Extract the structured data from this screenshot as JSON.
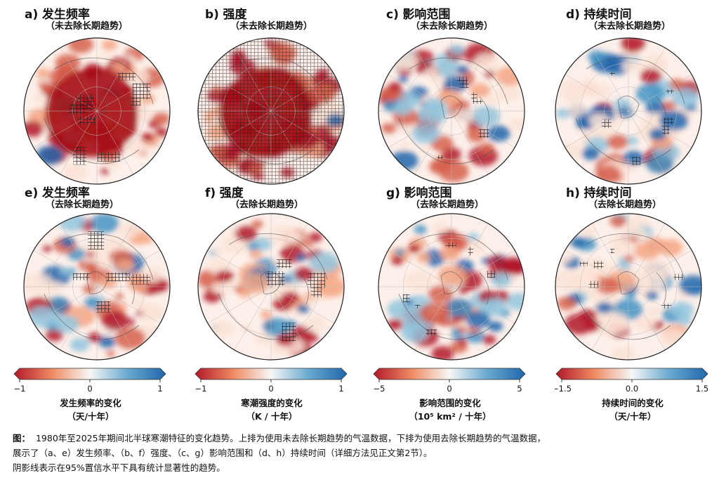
{
  "panels": [
    {
      "letter": "a)",
      "name": "发生频率",
      "subtitle": "（未去除长期趋势）",
      "red": 0.62,
      "blue": 0.1,
      "hatch": "heavy",
      "seed": 11
    },
    {
      "letter": "b)",
      "name": "强度",
      "subtitle": "（未去除长期趋势）",
      "red": 0.85,
      "blue": 0.05,
      "hatch": "full",
      "seed": 23
    },
    {
      "letter": "c)",
      "name": "影响范围",
      "subtitle": "（未去除长期趋势）",
      "red": 0.5,
      "blue": 0.35,
      "hatch": "sparse",
      "seed": 37
    },
    {
      "letter": "d)",
      "name": "持续时间",
      "subtitle": "（未去除长期趋势）",
      "red": 0.35,
      "blue": 0.3,
      "hatch": "sparse",
      "seed": 41
    },
    {
      "letter": "e)",
      "name": "发生频率",
      "subtitle": "（去除长期趋势）",
      "red": 0.45,
      "blue": 0.3,
      "hatch": "medium",
      "seed": 53
    },
    {
      "letter": "f)",
      "name": "强度",
      "subtitle": "（去除长期趋势）",
      "red": 0.35,
      "blue": 0.25,
      "hatch": "medium",
      "seed": 67
    },
    {
      "letter": "g)",
      "name": "影响范围",
      "subtitle": "（去除长期趋势）",
      "red": 0.5,
      "blue": 0.4,
      "hatch": "sparse",
      "seed": 71
    },
    {
      "letter": "h)",
      "name": "持续时间",
      "subtitle": "（去除长期趋势）",
      "red": 0.3,
      "blue": 0.3,
      "hatch": "sparse",
      "seed": 83
    }
  ],
  "colorbars": [
    {
      "ticks": [
        "−1",
        "0",
        "1"
      ],
      "label_line1": "发生频率的变化",
      "label_line2": "（天/十年）"
    },
    {
      "ticks": [
        "−1",
        "0",
        "1"
      ],
      "label_line1": "寒潮强度的变化",
      "label_line2": "（K / 十年）"
    },
    {
      "ticks": [
        "−5",
        "0",
        "5"
      ],
      "label_line1": "影响范围的变化",
      "label_line2": "（10⁵ km² / 十年）"
    },
    {
      "ticks": [
        "−1.5",
        "0.0",
        "1.5"
      ],
      "label_line1": "持续时间的变化",
      "label_line2": "（天/十年）"
    }
  ],
  "caption": {
    "prefix": "图：",
    "line1": "1980年至2025年期间北半球寒潮特征的变化趋势。上排为使用未去除长期趋势的气温数据，下排为使用去除长期趋势的气温数据，",
    "line2": "展示了（a、e）发生频率、（b、f）强度、（c、g）影响范围和（d、h）持续时间（详细方法见正文第2节）。",
    "line3": "阴影线表示在95%置信水平下具有统计显著性的趋势。"
  },
  "colors": {
    "red": "#c0272d",
    "deep_red": "#a50f15",
    "blue": "#2166ac",
    "white": "#f7f7f7"
  }
}
